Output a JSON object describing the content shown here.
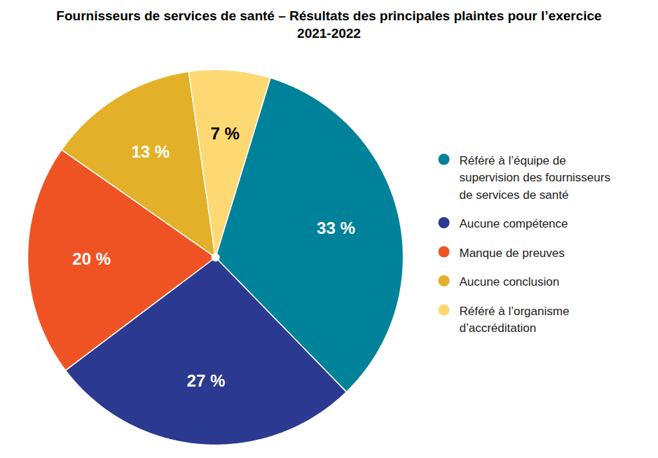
{
  "chart_data": {
    "type": "pie",
    "title": "Fournisseurs de services de santé – Résultats des principales plaintes pour l’exercice 2021-2022",
    "categories": [
      "Référé à l’équipe de supervision des fournisseurs de services de santé",
      "Aucune compétence",
      "Manque de preuves",
      "Aucune conclusion",
      "Référé à l’organisme d’accréditation"
    ],
    "values": [
      33,
      27,
      20,
      13,
      7
    ],
    "value_labels": [
      "33 %",
      "27 %",
      "20 %",
      "13 %",
      "7 %"
    ],
    "colors": [
      "#00829b",
      "#2b3990",
      "#ef5323",
      "#e3b129",
      "#fdd873"
    ],
    "data_labels": true,
    "legend": "right"
  }
}
